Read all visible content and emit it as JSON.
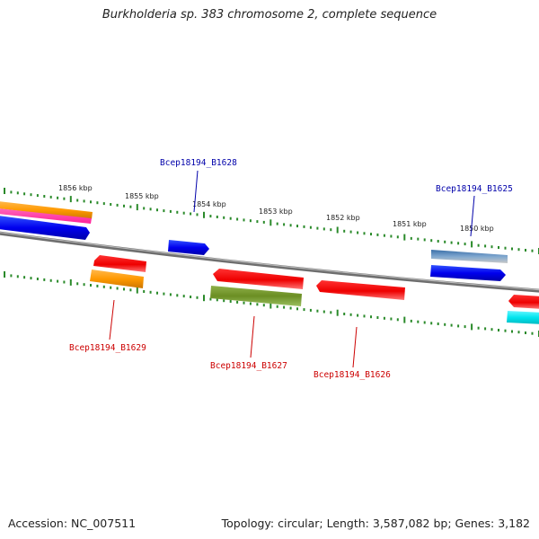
{
  "title": "Burkholderia sp. 383 chromosome 2, complete sequence",
  "footer": {
    "accession": "Accession: NC_007511",
    "topology": "Topology: circular; Length: 3,587,082 bp; Genes: 3,182"
  },
  "ticks": [
    "1856 kbp",
    "1855 kbp",
    "1854 kbp",
    "1853 kbp",
    "1852 kbp",
    "1851 kbp",
    "1850 kbp"
  ],
  "genes": [
    {
      "label": "Bcep18194_B1628",
      "strand": "forward",
      "color": "#0000cc"
    },
    {
      "label": "Bcep18194_B1625",
      "strand": "forward",
      "color": "#0000cc"
    },
    {
      "label": "Bcep18194_B1629",
      "strand": "reverse",
      "color": "#cc0000"
    },
    {
      "label": "Bcep18194_B1627",
      "strand": "reverse",
      "color": "#cc0000"
    },
    {
      "label": "Bcep18194_B1626",
      "strand": "reverse",
      "color": "#cc0000"
    }
  ],
  "colors": {
    "backbone": "#808080",
    "tick": "#2a8a2a",
    "forward": "#0000ee",
    "reverse": "#ee0000",
    "orange": "#ff9900",
    "magenta": "#ff2299",
    "olive": "#6b8e23",
    "steel": "#4f7fb0",
    "cyan": "#00e5ee"
  }
}
